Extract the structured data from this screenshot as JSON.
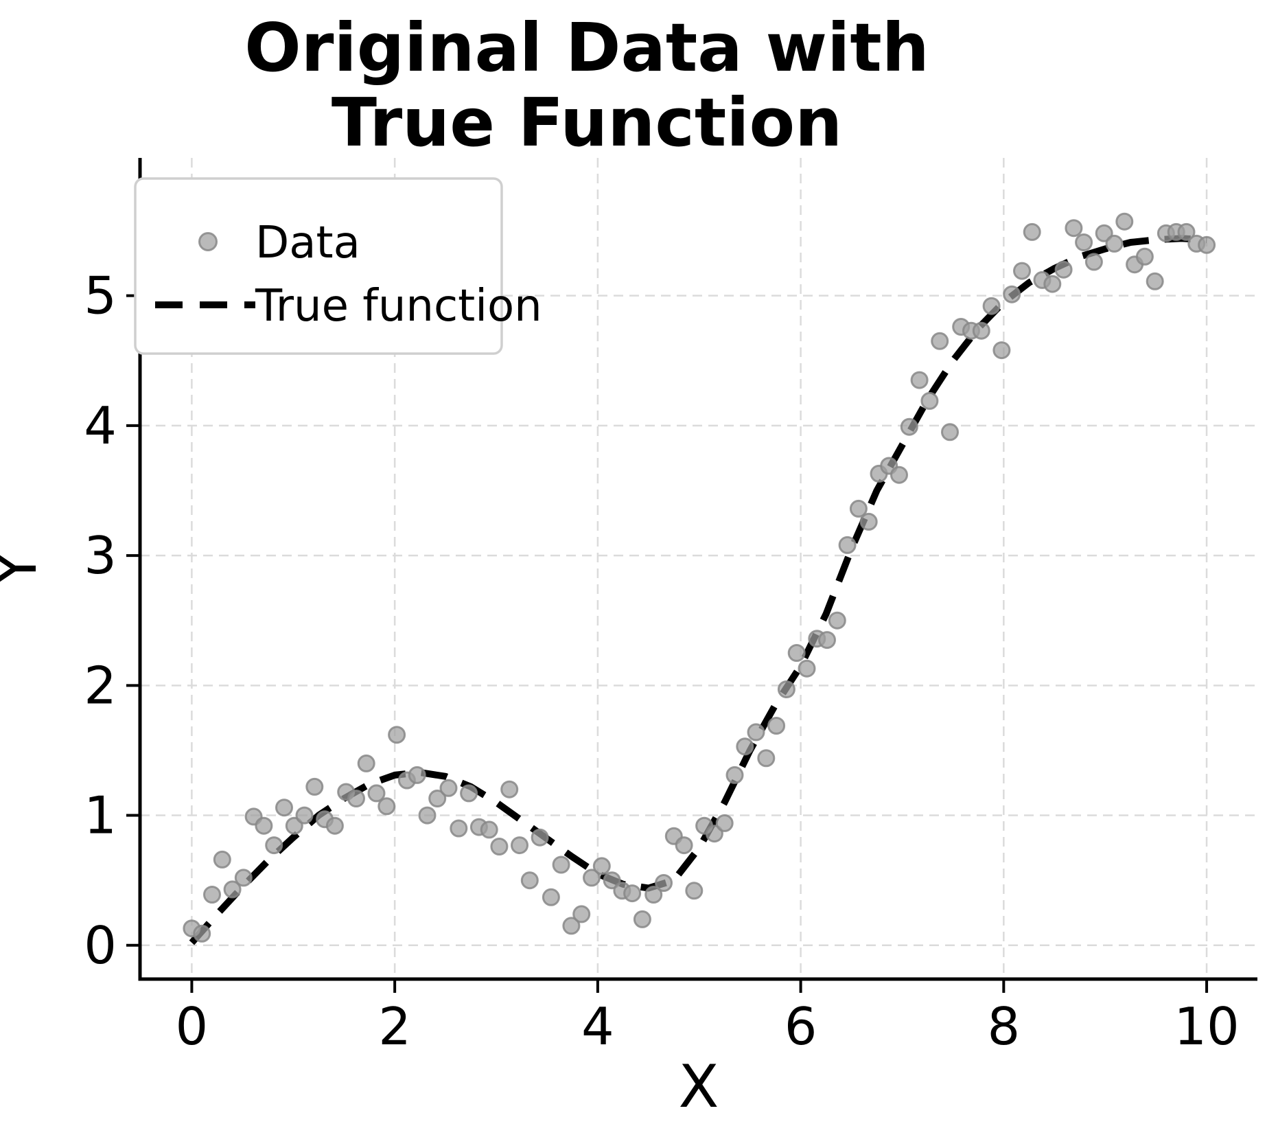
{
  "figure": {
    "title_line1": "Original Data with",
    "title_line2": "True Function",
    "xlabel": "X",
    "ylabel": "Y"
  },
  "legend": {
    "data_label": "Data",
    "line_label": "True function"
  },
  "colors": {
    "background": "#ffffff",
    "scatter_fill": "#9f9f9f",
    "scatter_edge": "#878787",
    "curve": "#000000",
    "grid": "#dbdbdb",
    "text": "#000000",
    "legend_border": "#cfcfcf"
  },
  "chart_data": {
    "type": "scatter",
    "title": "Original Data with True Function",
    "xlabel": "X",
    "ylabel": "Y",
    "xlim": [
      -0.51,
      10.5
    ],
    "ylim": [
      -0.26,
      6.06
    ],
    "xticks": [
      0,
      2,
      4,
      6,
      8,
      10
    ],
    "yticks": [
      0,
      1,
      2,
      3,
      4,
      5
    ],
    "grid": true,
    "legend_position": "upper left",
    "series": [
      {
        "name": "Data",
        "plot_type": "scatter",
        "x": [
          0.0,
          0.1,
          0.2,
          0.3,
          0.4,
          0.51,
          0.61,
          0.71,
          0.81,
          0.91,
          1.01,
          1.11,
          1.21,
          1.31,
          1.41,
          1.52,
          1.62,
          1.72,
          1.82,
          1.92,
          2.02,
          2.12,
          2.22,
          2.32,
          2.42,
          2.53,
          2.63,
          2.73,
          2.83,
          2.93,
          3.03,
          3.13,
          3.23,
          3.33,
          3.43,
          3.54,
          3.64,
          3.74,
          3.84,
          3.94,
          4.04,
          4.14,
          4.24,
          4.34,
          4.44,
          4.55,
          4.65,
          4.75,
          4.85,
          4.95,
          5.05,
          5.15,
          5.25,
          5.35,
          5.45,
          5.56,
          5.66,
          5.76,
          5.86,
          5.96,
          6.06,
          6.16,
          6.26,
          6.36,
          6.46,
          6.57,
          6.67,
          6.77,
          6.87,
          6.97,
          7.07,
          7.17,
          7.27,
          7.37,
          7.47,
          7.58,
          7.68,
          7.78,
          7.88,
          7.98,
          8.08,
          8.18,
          8.28,
          8.38,
          8.48,
          8.59,
          8.69,
          8.79,
          8.89,
          8.99,
          9.09,
          9.19,
          9.29,
          9.39,
          9.49,
          9.6,
          9.7,
          9.8,
          9.9,
          10.0
        ],
        "y": [
          0.13,
          0.09,
          0.39,
          0.66,
          0.43,
          0.52,
          0.99,
          0.92,
          0.77,
          1.06,
          0.92,
          1.0,
          1.22,
          0.97,
          0.92,
          1.18,
          1.13,
          1.4,
          1.17,
          1.07,
          1.62,
          1.27,
          1.31,
          1.0,
          1.13,
          1.21,
          0.9,
          1.17,
          0.91,
          0.89,
          0.76,
          1.2,
          0.77,
          0.5,
          0.83,
          0.37,
          0.62,
          0.15,
          0.24,
          0.52,
          0.61,
          0.5,
          0.42,
          0.4,
          0.2,
          0.39,
          0.48,
          0.84,
          0.77,
          0.42,
          0.92,
          0.86,
          0.94,
          1.31,
          1.53,
          1.64,
          1.44,
          1.69,
          1.97,
          2.25,
          2.13,
          2.36,
          2.35,
          2.5,
          3.08,
          3.36,
          3.26,
          3.63,
          3.69,
          3.62,
          3.99,
          4.35,
          4.19,
          4.65,
          3.95,
          4.76,
          4.73,
          4.73,
          4.92,
          4.58,
          5.01,
          5.19,
          5.49,
          5.12,
          5.09,
          5.2,
          5.52,
          5.41,
          5.26,
          5.48,
          5.4,
          5.57,
          5.24,
          5.3,
          5.11,
          5.48,
          5.49,
          5.49,
          5.4,
          5.39
        ]
      },
      {
        "name": "True function",
        "plot_type": "dashed-line",
        "x": [
          0,
          0.25,
          0.5,
          0.75,
          1,
          1.25,
          1.5,
          1.75,
          2,
          2.25,
          2.5,
          2.75,
          3,
          3.25,
          3.5,
          3.75,
          4,
          4.25,
          4.5,
          4.75,
          5,
          5.25,
          5.5,
          5.75,
          6,
          6.25,
          6.5,
          6.75,
          7,
          7.25,
          7.5,
          7.75,
          8,
          8.25,
          8.5,
          8.75,
          9,
          9.25,
          9.5,
          9.75,
          10
        ],
        "y": [
          0.02,
          0.24,
          0.45,
          0.65,
          0.83,
          1.0,
          1.13,
          1.24,
          1.31,
          1.33,
          1.3,
          1.22,
          1.1,
          0.96,
          0.82,
          0.68,
          0.55,
          0.47,
          0.44,
          0.5,
          0.75,
          1.1,
          1.5,
          1.85,
          2.15,
          2.55,
          3.05,
          3.5,
          3.85,
          4.2,
          4.5,
          4.75,
          4.95,
          5.1,
          5.21,
          5.3,
          5.36,
          5.41,
          5.43,
          5.44,
          5.43
        ]
      }
    ]
  }
}
